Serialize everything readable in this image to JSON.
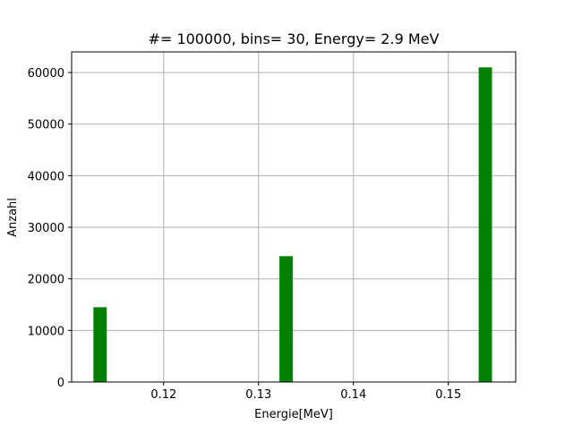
{
  "chart_data": {
    "type": "bar",
    "title": "#= 100000, bins= 30, Energy= 2.9 MeV",
    "xlabel": "Energie[MeV]",
    "ylabel": "Anzahl",
    "xlim": [
      0.1103,
      0.1571
    ],
    "ylim": [
      0,
      64000
    ],
    "xticks": [
      0.12,
      0.13,
      0.14,
      0.15
    ],
    "xtick_labels": [
      "0.12",
      "0.13",
      "0.14",
      "0.15"
    ],
    "yticks": [
      0,
      10000,
      20000,
      30000,
      40000,
      50000,
      60000
    ],
    "ytick_labels": [
      "0",
      "10000",
      "20000",
      "30000",
      "40000",
      "50000",
      "60000"
    ],
    "grid": true,
    "bar_color": "#008000",
    "bars": [
      {
        "x0": 0.1126,
        "x1": 0.114,
        "value": 14500
      },
      {
        "x0": 0.1322,
        "x1": 0.1336,
        "value": 24400
      },
      {
        "x0": 0.1532,
        "x1": 0.1546,
        "value": 61000
      }
    ]
  }
}
